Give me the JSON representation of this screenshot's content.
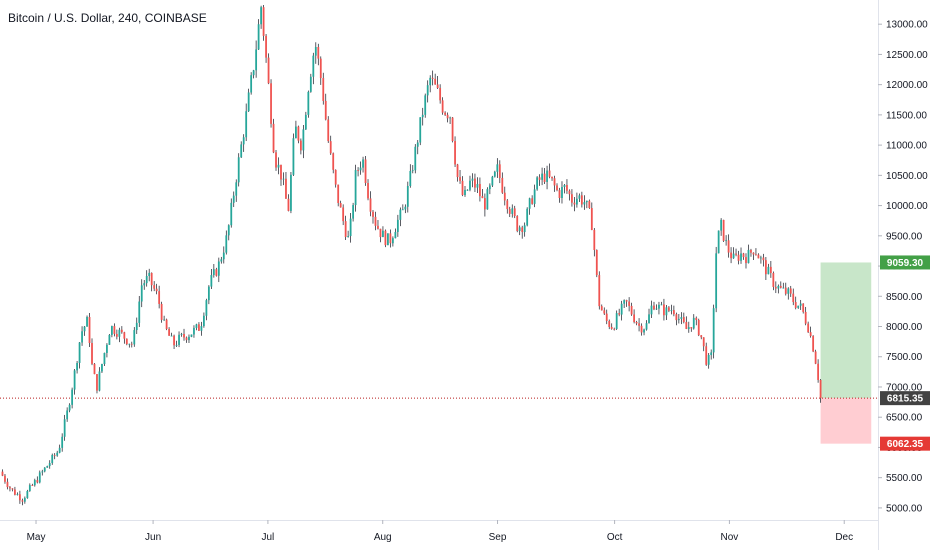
{
  "chart_data": {
    "type": "candlestick",
    "title": "Bitcoin / U.S. Dollar, 240, COINBASE",
    "ylim": [
      4800,
      13400
    ],
    "y_ticks": [
      "5000.00",
      "5500.00",
      "6000.00",
      "6500.00",
      "7000.00",
      "7500.00",
      "8000.00",
      "8500.00",
      "9000.00",
      "9500.00",
      "10000.00",
      "10500.00",
      "11000.00",
      "11500.00",
      "12000.00",
      "12500.00",
      "13000.00"
    ],
    "x_labels": [
      "May",
      "Jun",
      "Jul",
      "Aug",
      "Sep",
      "Oct",
      "Nov",
      "Dec"
    ],
    "grid": false,
    "colors": {
      "up": "#26a69a",
      "down": "#ef5350",
      "wick": "#131722",
      "target_zone": "#c8e6c9",
      "stop_zone": "#ffcdd2",
      "target_badge": "#43a047",
      "stop_badge": "#e53935",
      "price_badge": "#424242"
    },
    "price_path": [
      {
        "x": 0.0,
        "y": 5600
      },
      {
        "x": 0.5,
        "y": 5300
      },
      {
        "x": 1.0,
        "y": 5150
      },
      {
        "x": 1.5,
        "y": 5400
      },
      {
        "x": 2.0,
        "y": 5650
      },
      {
        "x": 2.6,
        "y": 5950
      },
      {
        "x": 3.0,
        "y": 6600
      },
      {
        "x": 3.3,
        "y": 7200
      },
      {
        "x": 3.6,
        "y": 7900
      },
      {
        "x": 3.9,
        "y": 8100
      },
      {
        "x": 4.1,
        "y": 7300
      },
      {
        "x": 4.3,
        "y": 7000
      },
      {
        "x": 4.6,
        "y": 7500
      },
      {
        "x": 4.9,
        "y": 8000
      },
      {
        "x": 5.3,
        "y": 7900
      },
      {
        "x": 5.6,
        "y": 7800
      },
      {
        "x": 5.9,
        "y": 7700
      },
      {
        "x": 6.3,
        "y": 8700
      },
      {
        "x": 6.6,
        "y": 8800
      },
      {
        "x": 7.0,
        "y": 8500
      },
      {
        "x": 7.3,
        "y": 8000
      },
      {
        "x": 7.7,
        "y": 7700
      },
      {
        "x": 8.0,
        "y": 7800
      },
      {
        "x": 8.5,
        "y": 7900
      },
      {
        "x": 8.9,
        "y": 8000
      },
      {
        "x": 9.3,
        "y": 8700
      },
      {
        "x": 9.7,
        "y": 9000
      },
      {
        "x": 10.1,
        "y": 9500
      },
      {
        "x": 10.5,
        "y": 10500
      },
      {
        "x": 10.9,
        "y": 11400
      },
      {
        "x": 11.3,
        "y": 12400
      },
      {
        "x": 11.6,
        "y": 13300
      },
      {
        "x": 11.9,
        "y": 12100
      },
      {
        "x": 12.2,
        "y": 10800
      },
      {
        "x": 12.5,
        "y": 10500
      },
      {
        "x": 12.8,
        "y": 9900
      },
      {
        "x": 13.1,
        "y": 11300
      },
      {
        "x": 13.4,
        "y": 11000
      },
      {
        "x": 13.7,
        "y": 12000
      },
      {
        "x": 14.0,
        "y": 12700
      },
      {
        "x": 14.3,
        "y": 12000
      },
      {
        "x": 14.6,
        "y": 11000
      },
      {
        "x": 14.9,
        "y": 10300
      },
      {
        "x": 15.2,
        "y": 9800
      },
      {
        "x": 15.5,
        "y": 9400
      },
      {
        "x": 15.8,
        "y": 10500
      },
      {
        "x": 16.1,
        "y": 10800
      },
      {
        "x": 16.4,
        "y": 10100
      },
      {
        "x": 16.7,
        "y": 9700
      },
      {
        "x": 17.0,
        "y": 9500
      },
      {
        "x": 17.3,
        "y": 9400
      },
      {
        "x": 17.6,
        "y": 9700
      },
      {
        "x": 17.9,
        "y": 9900
      },
      {
        "x": 18.2,
        "y": 10400
      },
      {
        "x": 18.5,
        "y": 11000
      },
      {
        "x": 18.8,
        "y": 11600
      },
      {
        "x": 19.1,
        "y": 12100
      },
      {
        "x": 19.4,
        "y": 11900
      },
      {
        "x": 19.7,
        "y": 11600
      },
      {
        "x": 20.0,
        "y": 11500
      },
      {
        "x": 20.3,
        "y": 10500
      },
      {
        "x": 20.6,
        "y": 10100
      },
      {
        "x": 20.9,
        "y": 10400
      },
      {
        "x": 21.2,
        "y": 10300
      },
      {
        "x": 21.5,
        "y": 10000
      },
      {
        "x": 21.8,
        "y": 10300
      },
      {
        "x": 22.1,
        "y": 10600
      },
      {
        "x": 22.4,
        "y": 10200
      },
      {
        "x": 22.7,
        "y": 9900
      },
      {
        "x": 23.0,
        "y": 9650
      },
      {
        "x": 23.3,
        "y": 9700
      },
      {
        "x": 23.6,
        "y": 10100
      },
      {
        "x": 23.9,
        "y": 10400
      },
      {
        "x": 24.2,
        "y": 10500
      },
      {
        "x": 24.5,
        "y": 10400
      },
      {
        "x": 24.8,
        "y": 10200
      },
      {
        "x": 25.1,
        "y": 10300
      },
      {
        "x": 25.4,
        "y": 10100
      },
      {
        "x": 25.7,
        "y": 10150
      },
      {
        "x": 26.0,
        "y": 10050
      },
      {
        "x": 26.3,
        "y": 9700
      },
      {
        "x": 26.6,
        "y": 8400
      },
      {
        "x": 26.9,
        "y": 8100
      },
      {
        "x": 27.2,
        "y": 8000
      },
      {
        "x": 27.5,
        "y": 8200
      },
      {
        "x": 27.8,
        "y": 8400
      },
      {
        "x": 28.1,
        "y": 8200
      },
      {
        "x": 28.4,
        "y": 8000
      },
      {
        "x": 28.7,
        "y": 8000
      },
      {
        "x": 29.0,
        "y": 8400
      },
      {
        "x": 29.3,
        "y": 8300
      },
      {
        "x": 29.6,
        "y": 8250
      },
      {
        "x": 29.9,
        "y": 8300
      },
      {
        "x": 30.2,
        "y": 8100
      },
      {
        "x": 30.5,
        "y": 7950
      },
      {
        "x": 30.8,
        "y": 8100
      },
      {
        "x": 31.1,
        "y": 7900
      },
      {
        "x": 31.4,
        "y": 7400
      },
      {
        "x": 31.6,
        "y": 7500
      },
      {
        "x": 31.8,
        "y": 9200
      },
      {
        "x": 32.0,
        "y": 9700
      },
      {
        "x": 32.3,
        "y": 9300
      },
      {
        "x": 32.6,
        "y": 9100
      },
      {
        "x": 32.9,
        "y": 9200
      },
      {
        "x": 33.2,
        "y": 9150
      },
      {
        "x": 33.5,
        "y": 9300
      },
      {
        "x": 33.8,
        "y": 9100
      },
      {
        "x": 34.1,
        "y": 8900
      },
      {
        "x": 34.4,
        "y": 8700
      },
      {
        "x": 34.7,
        "y": 8600
      },
      {
        "x": 35.0,
        "y": 8550
      },
      {
        "x": 35.3,
        "y": 8400
      },
      {
        "x": 35.6,
        "y": 8300
      },
      {
        "x": 35.9,
        "y": 8000
      },
      {
        "x": 36.1,
        "y": 7700
      },
      {
        "x": 36.3,
        "y": 7300
      },
      {
        "x": 36.45,
        "y": 6815.35
      }
    ],
    "x_range": [
      0,
      39
    ],
    "x_label_positions": [
      1.6,
      6.8,
      11.9,
      17.0,
      22.1,
      27.3,
      32.4,
      37.5
    ],
    "current_price": "6815.35",
    "current_price_value": 6815.35,
    "target": {
      "label": "9059.30",
      "value": 9059.3
    },
    "stop": {
      "label": "6062.35",
      "value": 6062.35
    },
    "position_x_start": 36.45,
    "position_x_end": 38.7
  }
}
